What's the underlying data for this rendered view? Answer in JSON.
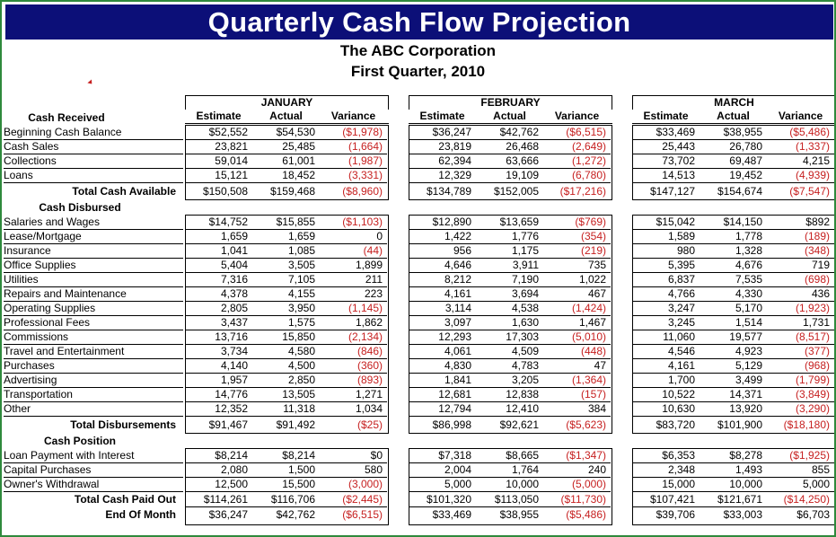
{
  "title": "Quarterly Cash Flow Projection",
  "company": "The ABC Corporation",
  "period": "First Quarter, 2010",
  "colors": {
    "banner": "#0c0f78",
    "negative": "#c62020",
    "border": "#2f8a3c"
  },
  "column_headers": [
    "Estimate",
    "Actual",
    "Variance"
  ],
  "rows": [
    {
      "label": "Cash Received",
      "type": "section"
    },
    {
      "label": "Beginning Cash Balance",
      "type": "line"
    },
    {
      "label": "Cash Sales",
      "type": "line"
    },
    {
      "label": "Collections",
      "type": "line"
    },
    {
      "label": "Loans",
      "type": "line"
    },
    {
      "label": "Total Cash Available",
      "type": "total"
    },
    {
      "label": "Cash Disbursed",
      "type": "sec2"
    },
    {
      "label": "Salaries and Wages",
      "type": "line"
    },
    {
      "label": "Lease/Mortgage",
      "type": "line"
    },
    {
      "label": "Insurance",
      "type": "line"
    },
    {
      "label": "Office Supplies",
      "type": "line"
    },
    {
      "label": "Utilities",
      "type": "line"
    },
    {
      "label": "Repairs and Maintenance",
      "type": "line"
    },
    {
      "label": "Operating Supplies",
      "type": "line"
    },
    {
      "label": "Professional Fees",
      "type": "line"
    },
    {
      "label": "Commissions",
      "type": "line"
    },
    {
      "label": "Travel and Entertainment",
      "type": "line"
    },
    {
      "label": "Purchases",
      "type": "line"
    },
    {
      "label": "Advertising",
      "type": "line"
    },
    {
      "label": "Transportation",
      "type": "line"
    },
    {
      "label": "Other",
      "type": "line"
    },
    {
      "label": "Total Disbursements",
      "type": "total"
    },
    {
      "label": "Cash Position",
      "type": "sec2"
    },
    {
      "label": "Loan Payment with Interest",
      "type": "line"
    },
    {
      "label": "Capital Purchases",
      "type": "line"
    },
    {
      "label": "Owner's Withdrawal",
      "type": "line"
    },
    {
      "label": "Total Cash Paid Out",
      "type": "total"
    },
    {
      "label": "End Of Month",
      "type": "total"
    }
  ],
  "months": [
    {
      "name": "JANUARY",
      "received": [
        [
          "$52,552",
          "$54,530",
          "($1,978)"
        ],
        [
          "23,821",
          "25,485",
          "(1,664)"
        ],
        [
          "59,014",
          "61,001",
          "(1,987)"
        ],
        [
          "15,121",
          "18,452",
          "(3,331)"
        ]
      ],
      "total_available": [
        "$150,508",
        "$159,468",
        "($8,960)"
      ],
      "disbursed": [
        [
          "$14,752",
          "$15,855",
          "($1,103)"
        ],
        [
          "1,659",
          "1,659",
          "0"
        ],
        [
          "1,041",
          "1,085",
          "(44)"
        ],
        [
          "5,404",
          "3,505",
          "1,899"
        ],
        [
          "7,316",
          "7,105",
          "211"
        ],
        [
          "4,378",
          "4,155",
          "223"
        ],
        [
          "2,805",
          "3,950",
          "(1,145)"
        ],
        [
          "3,437",
          "1,575",
          "1,862"
        ],
        [
          "13,716",
          "15,850",
          "(2,134)"
        ],
        [
          "3,734",
          "4,580",
          "(846)"
        ],
        [
          "4,140",
          "4,500",
          "(360)"
        ],
        [
          "1,957",
          "2,850",
          "(893)"
        ],
        [
          "14,776",
          "13,505",
          "1,271"
        ],
        [
          "12,352",
          "11,318",
          "1,034"
        ]
      ],
      "total_disbursements": [
        "$91,467",
        "$91,492",
        "($25)"
      ],
      "position": [
        [
          "$8,214",
          "$8,214",
          "$0"
        ],
        [
          "2,080",
          "1,500",
          "580"
        ],
        [
          "12,500",
          "15,500",
          "(3,000)"
        ]
      ],
      "total_paid_out": [
        "$114,261",
        "$116,706",
        "($2,445)"
      ],
      "end_of_month": [
        "$36,247",
        "$42,762",
        "($6,515)"
      ]
    },
    {
      "name": "FEBRUARY",
      "received": [
        [
          "$36,247",
          "$42,762",
          "($6,515)"
        ],
        [
          "23,819",
          "26,468",
          "(2,649)"
        ],
        [
          "62,394",
          "63,666",
          "(1,272)"
        ],
        [
          "12,329",
          "19,109",
          "(6,780)"
        ]
      ],
      "total_available": [
        "$134,789",
        "$152,005",
        "($17,216)"
      ],
      "disbursed": [
        [
          "$12,890",
          "$13,659",
          "($769)"
        ],
        [
          "1,422",
          "1,776",
          "(354)"
        ],
        [
          "956",
          "1,175",
          "(219)"
        ],
        [
          "4,646",
          "3,911",
          "735"
        ],
        [
          "8,212",
          "7,190",
          "1,022"
        ],
        [
          "4,161",
          "3,694",
          "467"
        ],
        [
          "3,114",
          "4,538",
          "(1,424)"
        ],
        [
          "3,097",
          "1,630",
          "1,467"
        ],
        [
          "12,293",
          "17,303",
          "(5,010)"
        ],
        [
          "4,061",
          "4,509",
          "(448)"
        ],
        [
          "4,830",
          "4,783",
          "47"
        ],
        [
          "1,841",
          "3,205",
          "(1,364)"
        ],
        [
          "12,681",
          "12,838",
          "(157)"
        ],
        [
          "12,794",
          "12,410",
          "384"
        ]
      ],
      "total_disbursements": [
        "$86,998",
        "$92,621",
        "($5,623)"
      ],
      "position": [
        [
          "$7,318",
          "$8,665",
          "($1,347)"
        ],
        [
          "2,004",
          "1,764",
          "240"
        ],
        [
          "5,000",
          "10,000",
          "(5,000)"
        ]
      ],
      "total_paid_out": [
        "$101,320",
        "$113,050",
        "($11,730)"
      ],
      "end_of_month": [
        "$33,469",
        "$38,955",
        "($5,486)"
      ]
    },
    {
      "name": "MARCH",
      "received": [
        [
          "$33,469",
          "$38,955",
          "($5,486)"
        ],
        [
          "25,443",
          "26,780",
          "(1,337)"
        ],
        [
          "73,702",
          "69,487",
          "4,215"
        ],
        [
          "14,513",
          "19,452",
          "(4,939)"
        ]
      ],
      "total_available": [
        "$147,127",
        "$154,674",
        "($7,547)"
      ],
      "disbursed": [
        [
          "$15,042",
          "$14,150",
          "$892"
        ],
        [
          "1,589",
          "1,778",
          "(189)"
        ],
        [
          "980",
          "1,328",
          "(348)"
        ],
        [
          "5,395",
          "4,676",
          "719"
        ],
        [
          "6,837",
          "7,535",
          "(698)"
        ],
        [
          "4,766",
          "4,330",
          "436"
        ],
        [
          "3,247",
          "5,170",
          "(1,923)"
        ],
        [
          "3,245",
          "1,514",
          "1,731"
        ],
        [
          "11,060",
          "19,577",
          "(8,517)"
        ],
        [
          "4,546",
          "4,923",
          "(377)"
        ],
        [
          "4,161",
          "5,129",
          "(968)"
        ],
        [
          "1,700",
          "3,499",
          "(1,799)"
        ],
        [
          "10,522",
          "14,371",
          "(3,849)"
        ],
        [
          "10,630",
          "13,920",
          "(3,290)"
        ]
      ],
      "total_disbursements": [
        "$83,720",
        "$101,900",
        "($18,180)"
      ],
      "position": [
        [
          "$6,353",
          "$8,278",
          "($1,925)"
        ],
        [
          "2,348",
          "1,493",
          "855"
        ],
        [
          "15,000",
          "10,000",
          "5,000"
        ]
      ],
      "total_paid_out": [
        "$107,421",
        "$121,671",
        "($14,250)"
      ],
      "end_of_month": [
        "$39,706",
        "$33,003",
        "$6,703"
      ]
    }
  ]
}
